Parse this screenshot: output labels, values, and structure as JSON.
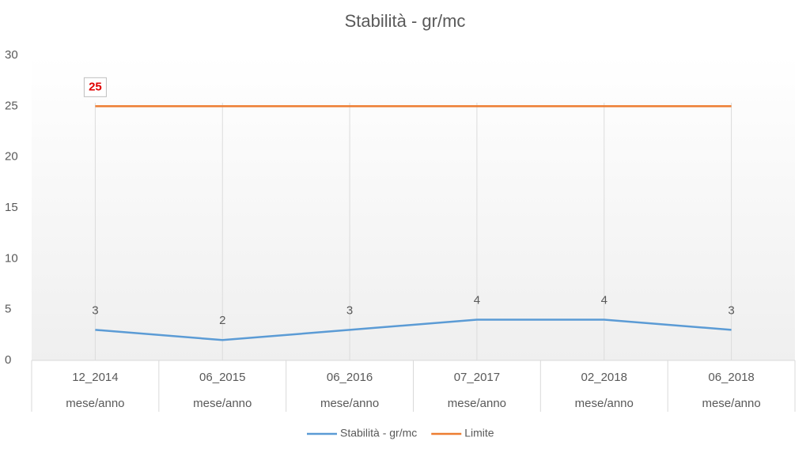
{
  "chart_data": {
    "type": "line",
    "title": "Stabilità - gr/mc",
    "categories": [
      "12_2014",
      "06_2015",
      "06_2016",
      "07_2017",
      "02_2018",
      "06_2018"
    ],
    "category_sublabels": [
      "mese/anno",
      "mese/anno",
      "mese/anno",
      "mese/anno",
      "mese/anno",
      "mese/anno"
    ],
    "series": [
      {
        "name": "Stabilità - gr/mc",
        "color": "#5b9bd5",
        "values": [
          3,
          2,
          3,
          4,
          4,
          3
        ],
        "label_indices": [
          0,
          1,
          2,
          3,
          4,
          5
        ],
        "label_color": "#595959"
      },
      {
        "name": "Limite",
        "color": "#ed7d31",
        "values": [
          25,
          25,
          25,
          25,
          25,
          25
        ],
        "label_indices": [
          0
        ],
        "label_color": "#e00000"
      }
    ],
    "ylim": [
      0,
      30
    ],
    "yticks": [
      0,
      5,
      10,
      15,
      20,
      25,
      30
    ],
    "grid": "vertical",
    "legend": "bottom"
  }
}
